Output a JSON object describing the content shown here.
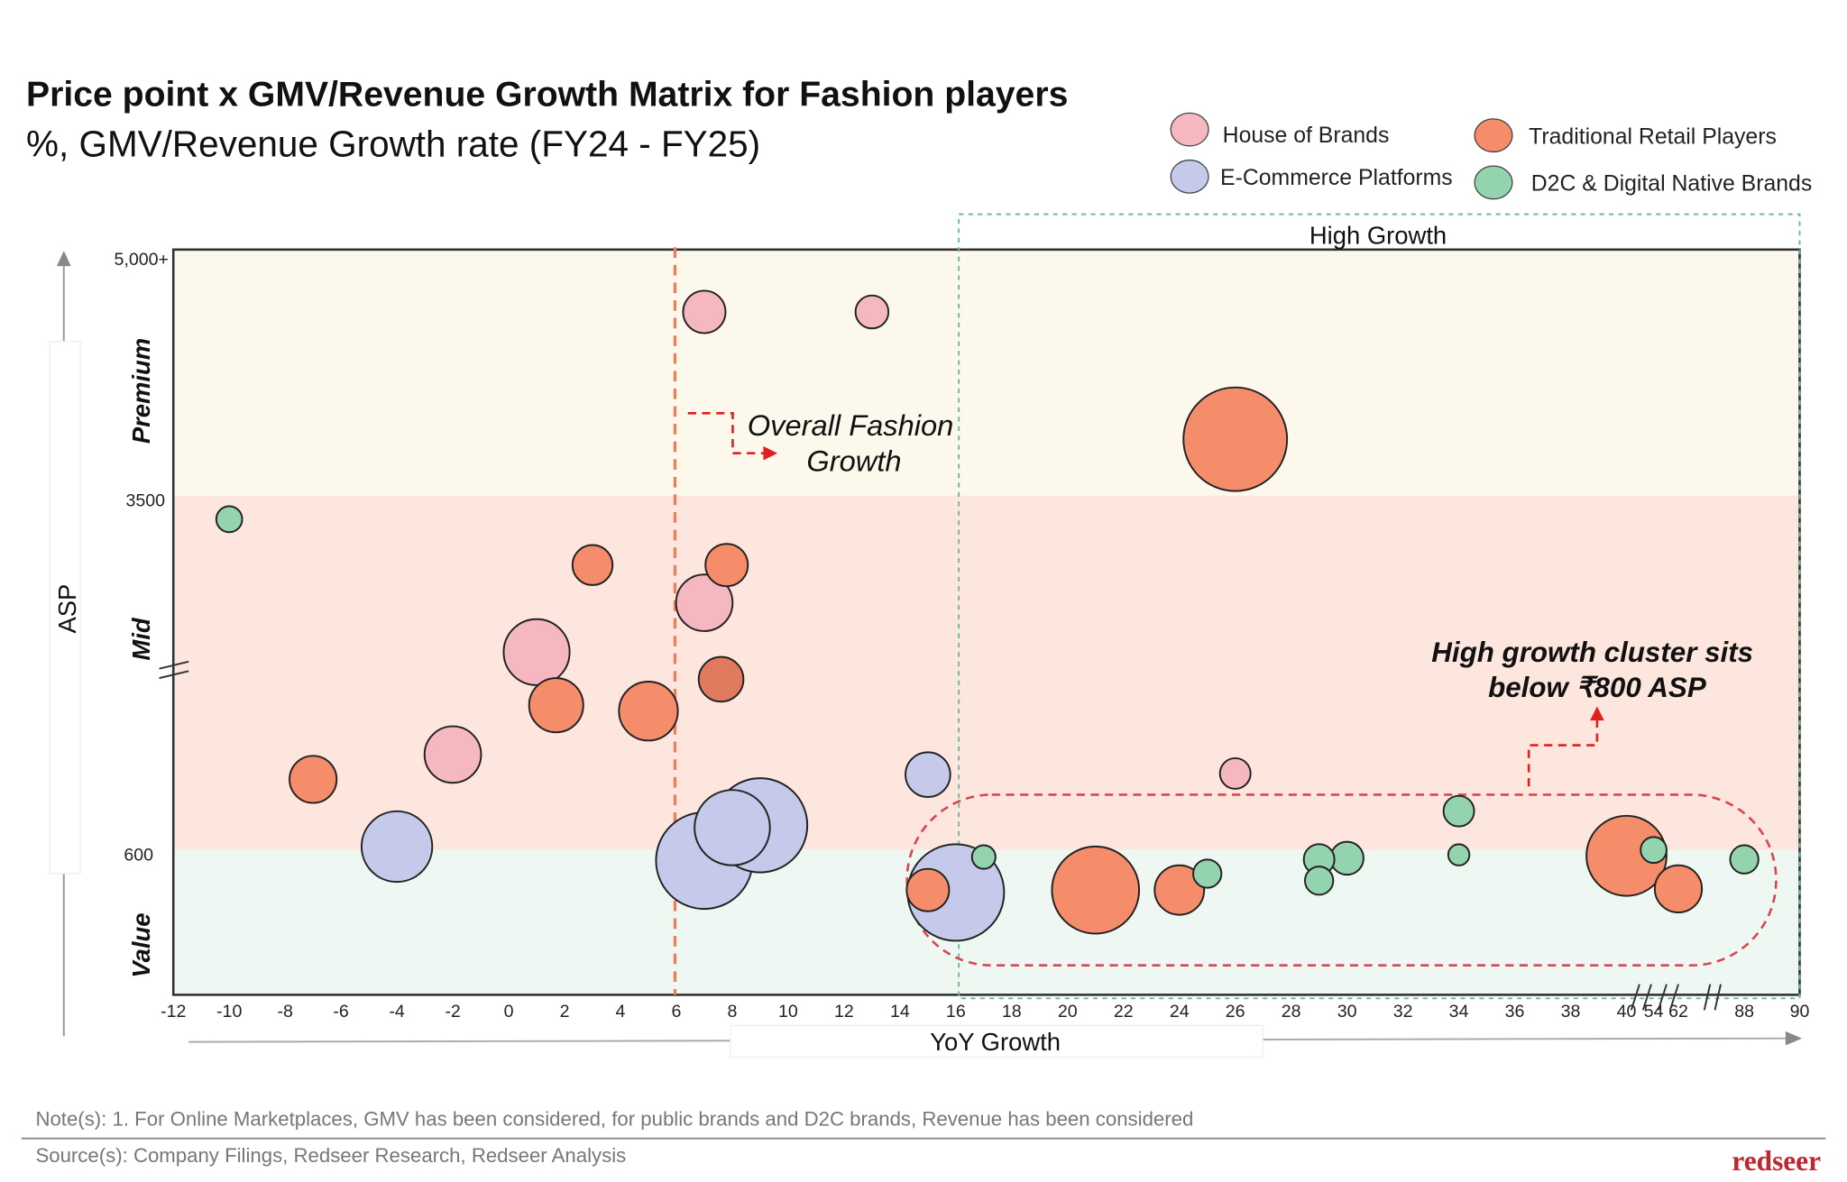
{
  "chart_data": {
    "type": "scatter",
    "title": "Price point x GMV/Revenue Growth Matrix for Fashion players",
    "subtitle": "%, GMV/Revenue Growth rate (FY24 - FY25)",
    "xlabel": "YoY Growth",
    "ylabel": "ASP",
    "y_ticks": [
      "5,000+",
      "3500",
      "600"
    ],
    "y_bands": [
      "Premium",
      "Mid",
      "Value"
    ],
    "x_ticks": [
      -12,
      -10,
      -8,
      -6,
      -4,
      -2,
      0,
      2,
      4,
      6,
      8,
      10,
      12,
      14,
      16,
      18,
      20,
      22,
      24,
      26,
      28,
      30,
      32,
      34,
      36,
      38,
      40,
      54,
      62,
      88,
      90
    ],
    "x_tick_labels": [
      "-12",
      "-10",
      "-8",
      "-6",
      "-4",
      "-2",
      "0",
      "2",
      "4",
      "6",
      "8",
      "10",
      "12",
      "14",
      "16",
      "18",
      "20",
      "22",
      "24",
      "26",
      "28",
      "30",
      "32",
      "34",
      "36",
      "38",
      "40",
      "54",
      "62",
      "88",
      "90"
    ],
    "legend": [
      {
        "name": "House of Brands",
        "color": "#f6b8c0"
      },
      {
        "name": "Traditional Retail Players",
        "color": "#f68d6a"
      },
      {
        "name": "E-Commerce Platforms",
        "color": "#c5c9ea"
      },
      {
        "name": "D2C & Digital Native Brands",
        "color": "#93d3ae"
      }
    ],
    "legend_placement": "top-right",
    "series": [
      {
        "name": "House of Brands",
        "points": [
          {
            "x": 7,
            "y": 4620,
            "size": 18
          },
          {
            "x": 13,
            "y": 4620,
            "size": 14
          },
          {
            "x": 7,
            "y": 2623,
            "size": 24
          },
          {
            "x": 1,
            "y": 2219,
            "size": 28
          },
          {
            "x": -2,
            "y": 1381,
            "size": 24
          },
          {
            "x": 26,
            "y": 1226,
            "size": 13
          }
        ]
      },
      {
        "name": "Traditional Retail Players",
        "points": [
          {
            "x": 26,
            "y": 3844,
            "size": 44
          },
          {
            "x": 3,
            "y": 2932,
            "size": 17
          },
          {
            "x": 7.8,
            "y": 2932,
            "size": 18
          },
          {
            "x": 7.6,
            "y": 1997,
            "size": 19
          },
          {
            "x": 1.7,
            "y": 1785,
            "size": 23
          },
          {
            "x": 5,
            "y": 1737,
            "size": 25
          },
          {
            "x": -7,
            "y": 1178,
            "size": 20
          },
          {
            "x": 15,
            "y": 434,
            "size": 18
          },
          {
            "x": 21,
            "y": 434,
            "size": 37
          },
          {
            "x": 24,
            "y": 434,
            "size": 21
          },
          {
            "x": 40,
            "y": 576,
            "size": 34
          },
          {
            "x": 62,
            "y": 439,
            "size": 20
          }
        ]
      },
      {
        "name": "E-Commerce Platforms",
        "points": [
          {
            "x": -4,
            "y": 628,
            "size": 30
          },
          {
            "x": 7,
            "y": 556,
            "size": 41
          },
          {
            "x": 9,
            "y": 802,
            "size": 40
          },
          {
            "x": 8,
            "y": 783,
            "size": 32
          },
          {
            "x": 15,
            "y": 1217,
            "size": 19
          },
          {
            "x": 16,
            "y": 424,
            "size": 41
          }
        ]
      },
      {
        "name": "D2C & Digital Native Brands",
        "points": [
          {
            "x": -10,
            "y": 3307,
            "size": 11
          },
          {
            "x": 17,
            "y": 571,
            "size": 10
          },
          {
            "x": 25,
            "y": 502,
            "size": 12
          },
          {
            "x": 29,
            "y": 561,
            "size": 13
          },
          {
            "x": 30,
            "y": 566,
            "size": 14
          },
          {
            "x": 29,
            "y": 473,
            "size": 12
          },
          {
            "x": 34,
            "y": 918,
            "size": 13
          },
          {
            "x": 34,
            "y": 580,
            "size": 9
          },
          {
            "x": 54,
            "y": 600,
            "size": 11
          },
          {
            "x": 88,
            "y": 561,
            "size": 12
          }
        ]
      }
    ],
    "annotations": {
      "overall_growth_x": 6,
      "overall_growth_label_1": "Overall Fashion",
      "overall_growth_label_2": "Growth",
      "high_growth_from_x": 16,
      "high_growth_label": "High Growth",
      "cluster_label_1": "High growth cluster sits",
      "cluster_label_2": "below ₹800 ASP"
    }
  },
  "footer": {
    "note": "Note(s): 1. For Online Marketplaces, GMV has been considered, for public brands and D2C brands, Revenue has been considered",
    "source": "Source(s): Company Filings, Redseer Research, Redseer Analysis",
    "logo": "redseer"
  }
}
